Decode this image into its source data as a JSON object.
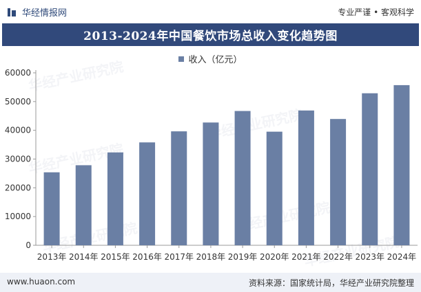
{
  "header": {
    "brand": "华经情报网",
    "tagline": "专业严谨 • 客观科学"
  },
  "colors": {
    "title_band": "#31497b",
    "bar": "#6a7fa4",
    "footer_bg": "#eef1f7"
  },
  "watermark": {
    "text": "华经产业研究院"
  },
  "footer": {
    "website": "www.huaon.com",
    "source": "资料来源：国家统计局，华经产业研究院整理"
  },
  "chart_data": {
    "type": "bar",
    "title": "2013-2024年中国餐饮市场总收入变化趋势图",
    "legend_position": "top-center",
    "grid": false,
    "categories": [
      "2013年",
      "2014年",
      "2015年",
      "2016年",
      "2017年",
      "2018年",
      "2019年",
      "2020年",
      "2021年",
      "2022年",
      "2023年",
      "2024年"
    ],
    "series": [
      {
        "name": "收入（亿元）",
        "values": [
          25392,
          27860,
          32310,
          35799,
          39644,
          42716,
          46721,
          39527,
          46895,
          43941,
          52890,
          55718
        ]
      }
    ],
    "yticks": [
      0,
      10000,
      20000,
      30000,
      40000,
      50000,
      60000
    ],
    "ylim": [
      0,
      60000
    ]
  }
}
